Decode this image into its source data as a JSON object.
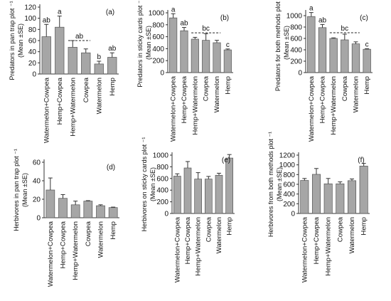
{
  "colors": {
    "bar_fill": "#a6a6a6",
    "bar_stroke": "#555555",
    "axis": "#333333",
    "error_bar": "#333333",
    "sig_line": "#222222"
  },
  "chart_data": [
    {
      "panel_label": "(a)",
      "type": "bar",
      "categories": [
        "Watermelon+Cowpea",
        "Hemp+Cowpea",
        "Hemp+Watermelon",
        "Cowpea",
        "Watermelon",
        "Hemp"
      ],
      "values": [
        67,
        84,
        48,
        38,
        18,
        30
      ],
      "errors": [
        22,
        20,
        12,
        7,
        5,
        8
      ],
      "sig_letters": [
        "ab",
        "a",
        "",
        "",
        "b",
        "ab"
      ],
      "sig_span": {
        "from": 2,
        "to": 3,
        "label": "ab",
        "y": 60
      },
      "ylabel": "Predators in pan trap plot ⁻¹",
      "ylabel2": "(Mean ±SE)",
      "yticks": [
        "0",
        "20",
        "40",
        "60",
        "80",
        "100",
        "120"
      ],
      "ylim": [
        0,
        120
      ]
    },
    {
      "panel_label": "(b)",
      "type": "bar",
      "categories": [
        "Watermelon+Cowpea",
        "Hemp+Cowpea",
        "Hemp+Watermelon",
        "Cowpea",
        "Watermelon",
        "Hemp"
      ],
      "values": [
        915,
        700,
        560,
        540,
        500,
        380
      ],
      "errors": [
        70,
        55,
        30,
        110,
        40,
        15
      ],
      "sig_letters": [
        "a",
        "ab",
        "",
        "",
        "",
        "c"
      ],
      "sig_span": {
        "from": 2,
        "to": 4,
        "label": "bc",
        "y": 665
      },
      "ylabel": "Predators in sticky cards plot ⁻¹",
      "ylabel2": "(Mean ±SE)",
      "yticks": [
        "0",
        "200",
        "400",
        "600",
        "800",
        "1000"
      ],
      "ylim": [
        0,
        1000
      ]
    },
    {
      "panel_label": "(c)",
      "type": "bar",
      "categories": [
        "Watermelon+Cowpea",
        "Hemp+Cowpea",
        "Hemp+Watermelon",
        "Cowpea",
        "Watermelon",
        "Hemp"
      ],
      "values": [
        985,
        790,
        600,
        575,
        505,
        410
      ],
      "errors": [
        70,
        55,
        10,
        100,
        35,
        10
      ],
      "sig_letters": [
        "a",
        "ab",
        "",
        "",
        "",
        "c"
      ],
      "sig_span": {
        "from": 2,
        "to": 4,
        "label": "bc",
        "y": 700
      },
      "ylabel": "Predators for both methods plot ⁻¹",
      "ylabel2": "(Mean ±SE)",
      "yticks": [
        "0",
        "200",
        "400",
        "600",
        "800",
        "1000"
      ],
      "ylim": [
        0,
        1050
      ]
    },
    {
      "panel_label": "(d)",
      "type": "bar",
      "categories": [
        "Watermelon+Cowpea",
        "Hemp+Cowpea",
        "Hemp+Watermelon",
        "Cowpea",
        "Watermelon",
        "Hemp"
      ],
      "values": [
        30,
        21,
        14,
        18,
        13,
        11
      ],
      "errors": [
        13,
        4,
        4,
        0.5,
        1,
        0.5
      ],
      "sig_letters": [
        "",
        "",
        "",
        "",
        "",
        ""
      ],
      "ylabel": "Herbivores in pan trap plot ⁻¹",
      "ylabel2": "(Mean ±SE)",
      "yticks": [
        "0",
        "20",
        "40",
        "60"
      ],
      "ylim": [
        0,
        60
      ]
    },
    {
      "panel_label": "(e)",
      "type": "bar",
      "categories": [
        "Watermelon+Cowpea",
        "Hemp+Cowpea",
        "Hemp+Watermelon",
        "Cowpea",
        "Watermelon",
        "Hemp"
      ],
      "values": [
        640,
        780,
        590,
        590,
        655,
        950
      ],
      "errors": [
        40,
        110,
        110,
        45,
        35,
        60
      ],
      "sig_letters": [
        "",
        "",
        "",
        "",
        "",
        ""
      ],
      "ylabel": "Herbivores on sticky cards plot ⁻¹",
      "ylabel2": "(Mean ±SE)",
      "yticks": [
        "0",
        "200",
        "400",
        "600",
        "800",
        "1000"
      ],
      "ylim": [
        0,
        1000
      ]
    },
    {
      "panel_label": "(f)",
      "type": "bar",
      "categories": [
        "Watermelon+Cowpea",
        "Hemp+Cowpea",
        "Hemp+Watermelon",
        "Cowpea",
        "Watermelon",
        "Hemp"
      ],
      "values": [
        680,
        805,
        610,
        610,
        675,
        975
      ],
      "errors": [
        40,
        120,
        110,
        40,
        35,
        55
      ],
      "sig_letters": [
        "",
        "",
        "",
        "",
        "",
        ""
      ],
      "ylabel": "Herbivores  from both methods plot ⁻¹",
      "ylabel2": "(Mean ±SE)",
      "yticks": [
        "0",
        "200",
        "400",
        "600",
        "800",
        "1000",
        "1200"
      ],
      "ylim": [
        0,
        1200
      ]
    }
  ]
}
